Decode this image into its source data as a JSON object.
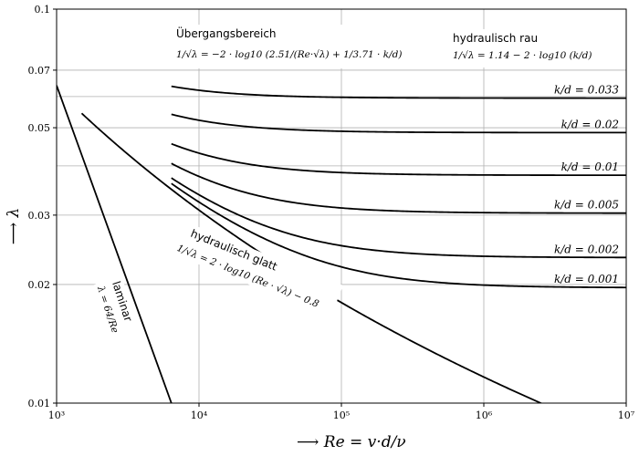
{
  "chart_data": {
    "type": "line",
    "x_scale": "log",
    "y_scale": "log",
    "xlim": [
      1000,
      10000000
    ],
    "ylim": [
      0.01,
      0.1
    ],
    "grid": true,
    "xlabel": "⟶ Re = v·d/ν",
    "ylabel": "⟶ λ",
    "x_ticks": [
      {
        "value": 1000,
        "label": "10³"
      },
      {
        "value": 10000,
        "label": "10⁴"
      },
      {
        "value": 100000,
        "label": "10⁵"
      },
      {
        "value": 1000000,
        "label": "10⁶"
      },
      {
        "value": 10000000,
        "label": "10⁷"
      }
    ],
    "y_ticks": [
      {
        "value": 0.01,
        "label": "0.01"
      },
      {
        "value": 0.02,
        "label": "0.02"
      },
      {
        "value": 0.03,
        "label": "0.03"
      },
      {
        "value": 0.05,
        "label": "0.05"
      },
      {
        "value": 0.07,
        "label": "0.07"
      },
      {
        "value": 0.1,
        "label": "0.1"
      }
    ],
    "minor_y_gridlines": [
      0.04,
      0.06
    ],
    "series": [
      {
        "name": "laminar",
        "formula": "λ = 64/Re",
        "x_range": [
          1000,
          6400
        ]
      },
      {
        "name": "hydraulisch glatt",
        "formula": "1/√λ = 2·log10(Re·√λ) − 0.8",
        "x_range": [
          1500,
          2600000
        ]
      },
      {
        "name": "k/d = 0.033",
        "rel_roughness": 0.033,
        "x_range": [
          6400,
          10000000
        ]
      },
      {
        "name": "k/d = 0.02",
        "rel_roughness": 0.02,
        "x_range": [
          6400,
          10000000
        ]
      },
      {
        "name": "k/d = 0.01",
        "rel_roughness": 0.01,
        "x_range": [
          6400,
          10000000
        ]
      },
      {
        "name": "k/d = 0.005",
        "rel_roughness": 0.005,
        "x_range": [
          6400,
          10000000
        ]
      },
      {
        "name": "k/d = 0.002",
        "rel_roughness": 0.002,
        "x_range": [
          6400,
          10000000
        ]
      },
      {
        "name": "k/d = 0.001",
        "rel_roughness": 0.001,
        "x_range": [
          6400,
          10000000
        ]
      }
    ],
    "annotations": {
      "uebergang_title": "Übergangsbereich",
      "uebergang_formula": "1/√λ = −2 · log10 (2.51/(Re·√λ) + 1/3.71 · k/d)",
      "rau_title": "hydraulisch rau",
      "rau_formula": "1/√λ = 1.14 − 2 · log10 (k/d)",
      "glatt_title": "hydraulisch glatt",
      "glatt_formula": "1/√λ = 2 · log10 (Re · √λ) − 0.8",
      "laminar_title": "laminar",
      "laminar_formula": "λ = 64/Re"
    }
  }
}
